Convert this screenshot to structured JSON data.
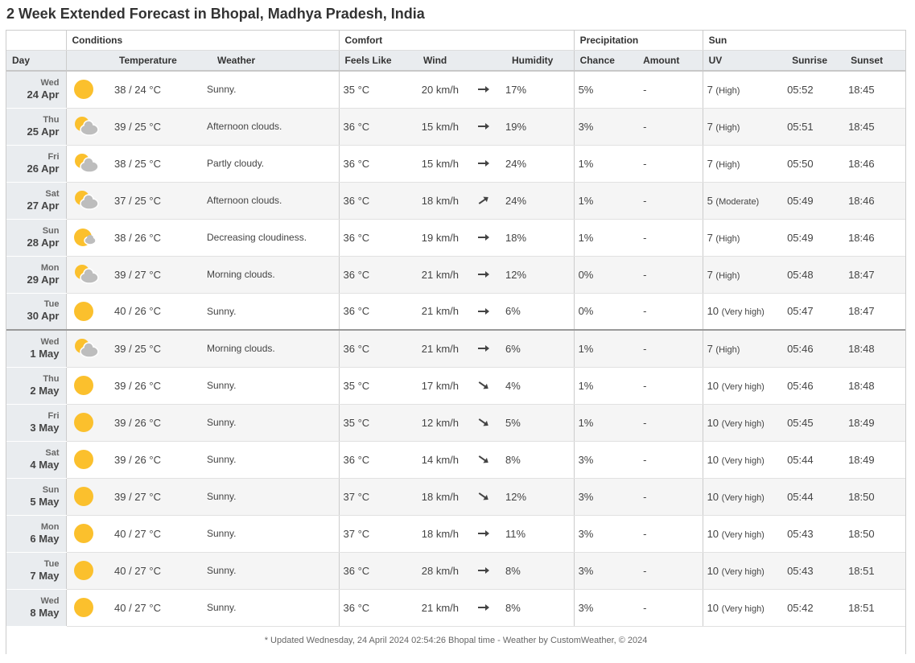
{
  "page": {
    "title": "2 Week Extended Forecast in Bhopal, Madhya Pradesh, India"
  },
  "groups": {
    "conditions": "Conditions",
    "comfort": "Comfort",
    "precipitation": "Precipitation",
    "sun": "Sun"
  },
  "columns": {
    "day": "Day",
    "temperature": "Temperature",
    "weather": "Weather",
    "feels_like": "Feels Like",
    "wind": "Wind",
    "humidity": "Humidity",
    "chance": "Chance",
    "amount": "Amount",
    "uv": "UV",
    "sunrise": "Sunrise",
    "sunset": "Sunset"
  },
  "colors": {
    "sun": "#fbc02d",
    "cloud": "#bdbdbd",
    "header_bg": "#e9ecef"
  },
  "rows": [
    {
      "dow": "Wed",
      "date": "24 Apr",
      "icon": "sun-icon",
      "temp": "38 / 24 °C",
      "weather": "Sunny.",
      "feels": "35 °C",
      "wind": "20 km/h",
      "dir": "east",
      "humidity": "17%",
      "chance": "5%",
      "amount": "-",
      "uv": "7",
      "uv_desc": "(High)",
      "sunrise": "05:52",
      "sunset": "18:45"
    },
    {
      "dow": "Thu",
      "date": "25 Apr",
      "icon": "partly-cloudy-icon",
      "temp": "39 / 25 °C",
      "weather": "Afternoon clouds.",
      "feels": "36 °C",
      "wind": "15 km/h",
      "dir": "east",
      "humidity": "19%",
      "chance": "3%",
      "amount": "-",
      "uv": "7",
      "uv_desc": "(High)",
      "sunrise": "05:51",
      "sunset": "18:45"
    },
    {
      "dow": "Fri",
      "date": "26 Apr",
      "icon": "partly-cloudy-icon",
      "temp": "38 / 25 °C",
      "weather": "Partly cloudy.",
      "feels": "36 °C",
      "wind": "15 km/h",
      "dir": "east",
      "humidity": "24%",
      "chance": "1%",
      "amount": "-",
      "uv": "7",
      "uv_desc": "(High)",
      "sunrise": "05:50",
      "sunset": "18:46"
    },
    {
      "dow": "Sat",
      "date": "27 Apr",
      "icon": "partly-cloudy-icon",
      "temp": "37 / 25 °C",
      "weather": "Afternoon clouds.",
      "feels": "36 °C",
      "wind": "18 km/h",
      "dir": "northeast",
      "humidity": "24%",
      "chance": "1%",
      "amount": "-",
      "uv": "5",
      "uv_desc": "(Moderate)",
      "sunrise": "05:49",
      "sunset": "18:46"
    },
    {
      "dow": "Sun",
      "date": "28 Apr",
      "icon": "sun-small-cloud-icon",
      "temp": "38 / 26 °C",
      "weather": "Decreasing cloudiness.",
      "feels": "36 °C",
      "wind": "19 km/h",
      "dir": "east",
      "humidity": "18%",
      "chance": "1%",
      "amount": "-",
      "uv": "7",
      "uv_desc": "(High)",
      "sunrise": "05:49",
      "sunset": "18:46"
    },
    {
      "dow": "Mon",
      "date": "29 Apr",
      "icon": "partly-cloudy-icon",
      "temp": "39 / 27 °C",
      "weather": "Morning clouds.",
      "feels": "36 °C",
      "wind": "21 km/h",
      "dir": "east",
      "humidity": "12%",
      "chance": "0%",
      "amount": "-",
      "uv": "7",
      "uv_desc": "(High)",
      "sunrise": "05:48",
      "sunset": "18:47"
    },
    {
      "dow": "Tue",
      "date": "30 Apr",
      "icon": "sun-icon",
      "temp": "40 / 26 °C",
      "weather": "Sunny.",
      "feels": "36 °C",
      "wind": "21 km/h",
      "dir": "east",
      "humidity": "6%",
      "chance": "0%",
      "amount": "-",
      "uv": "10",
      "uv_desc": "(Very high)",
      "sunrise": "05:47",
      "sunset": "18:47"
    },
    {
      "dow": "Wed",
      "date": "1 May",
      "icon": "partly-cloudy-icon",
      "temp": "39 / 25 °C",
      "weather": "Morning clouds.",
      "feels": "36 °C",
      "wind": "21 km/h",
      "dir": "east",
      "humidity": "6%",
      "chance": "1%",
      "amount": "-",
      "uv": "7",
      "uv_desc": "(High)",
      "sunrise": "05:46",
      "sunset": "18:48"
    },
    {
      "dow": "Thu",
      "date": "2 May",
      "icon": "sun-icon",
      "temp": "39 / 26 °C",
      "weather": "Sunny.",
      "feels": "35 °C",
      "wind": "17 km/h",
      "dir": "southeast",
      "humidity": "4%",
      "chance": "1%",
      "amount": "-",
      "uv": "10",
      "uv_desc": "(Very high)",
      "sunrise": "05:46",
      "sunset": "18:48"
    },
    {
      "dow": "Fri",
      "date": "3 May",
      "icon": "sun-icon",
      "temp": "39 / 26 °C",
      "weather": "Sunny.",
      "feels": "35 °C",
      "wind": "12 km/h",
      "dir": "southeast",
      "humidity": "5%",
      "chance": "1%",
      "amount": "-",
      "uv": "10",
      "uv_desc": "(Very high)",
      "sunrise": "05:45",
      "sunset": "18:49"
    },
    {
      "dow": "Sat",
      "date": "4 May",
      "icon": "sun-icon",
      "temp": "39 / 26 °C",
      "weather": "Sunny.",
      "feels": "36 °C",
      "wind": "14 km/h",
      "dir": "southeast",
      "humidity": "8%",
      "chance": "3%",
      "amount": "-",
      "uv": "10",
      "uv_desc": "(Very high)",
      "sunrise": "05:44",
      "sunset": "18:49"
    },
    {
      "dow": "Sun",
      "date": "5 May",
      "icon": "sun-icon",
      "temp": "39 / 27 °C",
      "weather": "Sunny.",
      "feels": "37 °C",
      "wind": "18 km/h",
      "dir": "southeast",
      "humidity": "12%",
      "chance": "3%",
      "amount": "-",
      "uv": "10",
      "uv_desc": "(Very high)",
      "sunrise": "05:44",
      "sunset": "18:50"
    },
    {
      "dow": "Mon",
      "date": "6 May",
      "icon": "sun-icon",
      "temp": "40 / 27 °C",
      "weather": "Sunny.",
      "feels": "37 °C",
      "wind": "18 km/h",
      "dir": "east",
      "humidity": "11%",
      "chance": "3%",
      "amount": "-",
      "uv": "10",
      "uv_desc": "(Very high)",
      "sunrise": "05:43",
      "sunset": "18:50"
    },
    {
      "dow": "Tue",
      "date": "7 May",
      "icon": "sun-icon",
      "temp": "40 / 27 °C",
      "weather": "Sunny.",
      "feels": "36 °C",
      "wind": "28 km/h",
      "dir": "east",
      "humidity": "8%",
      "chance": "3%",
      "amount": "-",
      "uv": "10",
      "uv_desc": "(Very high)",
      "sunrise": "05:43",
      "sunset": "18:51"
    },
    {
      "dow": "Wed",
      "date": "8 May",
      "icon": "sun-icon",
      "temp": "40 / 27 °C",
      "weather": "Sunny.",
      "feels": "36 °C",
      "wind": "21 km/h",
      "dir": "east",
      "humidity": "8%",
      "chance": "3%",
      "amount": "-",
      "uv": "10",
      "uv_desc": "(Very high)",
      "sunrise": "05:42",
      "sunset": "18:51"
    }
  ],
  "footer": {
    "note": "* Updated Wednesday, 24 April 2024 02:54:26 Bhopal time - Weather by CustomWeather, © 2024"
  }
}
